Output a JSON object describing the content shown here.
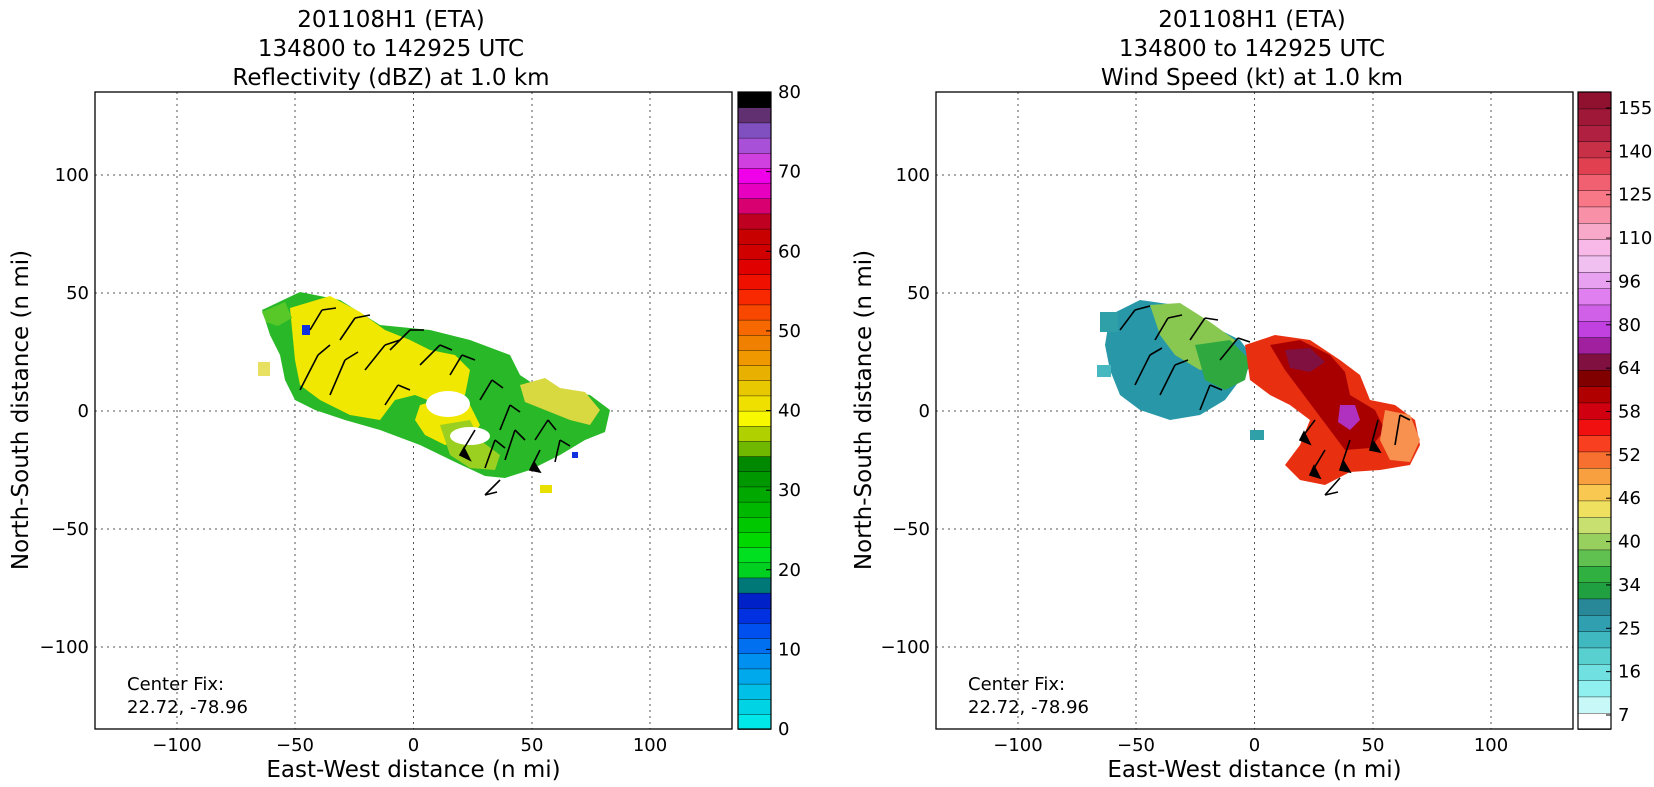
{
  "figure": {
    "panels": [
      {
        "title_lines": [
          "201108H1 (ETA)",
          "134800 to 142925 UTC",
          "Reflectivity (dBZ) at 1.0 km"
        ],
        "annotation_lines": [
          "Center Fix:",
          "22.72, -78.96"
        ],
        "colorbar": {
          "tick_labels": [
            "0",
            "10",
            "20",
            "30",
            "40",
            "50",
            "60",
            "70",
            "80"
          ],
          "colors": [
            "#00e8e8",
            "#00d4e4",
            "#00c0e8",
            "#00a8ec",
            "#0090f0",
            "#0070f0",
            "#0050f0",
            "#0030e0",
            "#0020c8",
            "#007878",
            "#00d020",
            "#00e020",
            "#00d800",
            "#00c800",
            "#00b800",
            "#00a800",
            "#009800",
            "#008800",
            "#70b800",
            "#b0d000",
            "#f8f800",
            "#f0e000",
            "#e8c800",
            "#e8b000",
            "#f09800",
            "#f08000",
            "#f86800",
            "#f84800",
            "#f82800",
            "#f01000",
            "#e00000",
            "#d00000",
            "#c80000",
            "#c00020",
            "#d80070",
            "#e800c0",
            "#f000e8",
            "#d040e0",
            "#a850d8",
            "#8050c0",
            "#603070",
            "#000000"
          ]
        }
      },
      {
        "title_lines": [
          "201108H1 (ETA)",
          "134800 to 142925 UTC",
          "Wind Speed (kt) at 1.0 km"
        ],
        "annotation_lines": [
          "Center Fix:",
          "22.72, -78.96"
        ],
        "colorbar": {
          "tick_labels": [
            "7",
            "16",
            "25",
            "34",
            "40",
            "46",
            "52",
            "58",
            "64",
            "80",
            "96",
            "110",
            "125",
            "140",
            "155"
          ],
          "colors": [
            "#ffffff",
            "#c8f8f8",
            "#90f0f0",
            "#70e0e0",
            "#58d0d0",
            "#40b8c0",
            "#30a0b0",
            "#288898",
            "#20a040",
            "#30b040",
            "#60c050",
            "#98d060",
            "#c8e070",
            "#f0e060",
            "#f8c850",
            "#f8a040",
            "#f87030",
            "#f84020",
            "#f01010",
            "#d00010",
            "#b00000",
            "#800000",
            "#801040",
            "#a020a0",
            "#c040e0",
            "#d060e8",
            "#e080f0",
            "#e8a0f0",
            "#f0c0f0",
            "#f8b8e8",
            "#f8a8c8",
            "#f890a8",
            "#f87888",
            "#f06070",
            "#e04050",
            "#c83048",
            "#b02040",
            "#a01838",
            "#901030"
          ]
        }
      }
    ],
    "x_axis": {
      "label": "East-West distance (n mi)",
      "ticks": [
        "−100",
        "−50",
        "0",
        "50",
        "100"
      ]
    },
    "y_axis": {
      "label": "North-South distance (n mi)",
      "ticks": [
        "100",
        "50",
        "0",
        "−50",
        "−100"
      ]
    }
  },
  "chart_data": [
    {
      "type": "heatmap",
      "title": "201108H1 (ETA) 134800 to 142925 UTC Reflectivity (dBZ) at 1.0 km",
      "xlabel": "East-West distance (n mi)",
      "ylabel": "North-South distance (n mi)",
      "xlim": [
        -135,
        135
      ],
      "ylim": [
        -135,
        135
      ],
      "xticks": [
        -100,
        -50,
        0,
        50,
        100
      ],
      "yticks": [
        -100,
        -50,
        0,
        50,
        100
      ],
      "grid": true,
      "colorbar": {
        "vmin": 0,
        "vmax": 80,
        "ticks": [
          0,
          10,
          20,
          30,
          40,
          50,
          60,
          70,
          80
        ],
        "unit": "dBZ"
      },
      "field_regions": [
        {
          "description": "main band",
          "center": [
            -10,
            18
          ],
          "extent": [
            -62,
            85,
            -30,
            48
          ],
          "typical_value": 33
        },
        {
          "description": "core yellow",
          "center": [
            -35,
            25
          ],
          "value": 38
        }
      ],
      "wind_barbs": true
    },
    {
      "type": "heatmap",
      "title": "201108H1 (ETA) 134800 to 142925 UTC Wind Speed (kt) at 1.0 km",
      "xlabel": "East-West distance (n mi)",
      "ylabel": "North-South distance (n mi)",
      "xlim": [
        -135,
        135
      ],
      "ylim": [
        -135,
        135
      ],
      "xticks": [
        -100,
        -50,
        0,
        50,
        100
      ],
      "yticks": [
        -100,
        -50,
        0,
        50,
        100
      ],
      "grid": true,
      "colorbar": {
        "ticks": [
          7,
          16,
          25,
          34,
          40,
          46,
          52,
          58,
          64,
          80,
          96,
          110,
          125,
          140,
          155
        ],
        "unit": "kt"
      },
      "field_regions": [
        {
          "description": "western sector",
          "extent": [
            -65,
            -5,
            -5,
            45
          ],
          "typical_value": 25
        },
        {
          "description": "eastern sector max",
          "extent": [
            5,
            70,
            -35,
            35
          ],
          "typical_value": 58
        }
      ],
      "wind_barbs": true
    }
  ]
}
